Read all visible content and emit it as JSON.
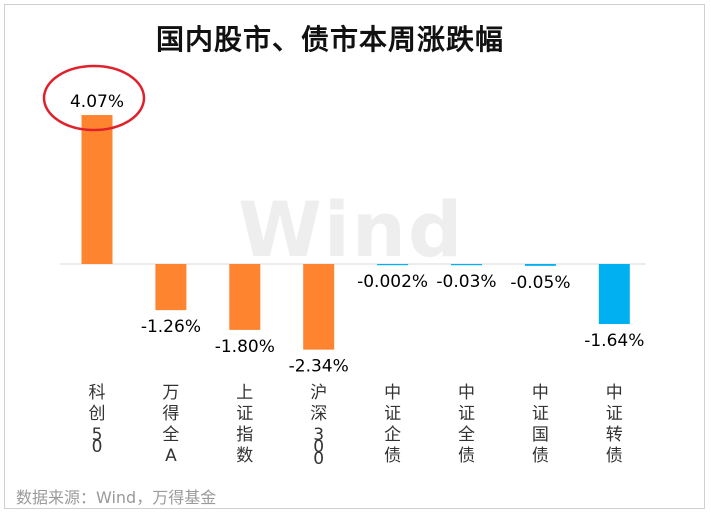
{
  "chart_data": {
    "type": "bar",
    "title": "国内股市、债市本周涨跌幅",
    "categories": [
      "科创50",
      "万得全A",
      "上证指数",
      "沪深300",
      "中证企债",
      "中证全债",
      "中证国债",
      "中证转债"
    ],
    "values": [
      4.07,
      -1.26,
      -1.8,
      -2.34,
      -0.002,
      -0.03,
      -0.05,
      -1.64
    ],
    "value_labels": [
      "4.07%",
      "-1.26%",
      "-1.80%",
      "-2.34%",
      "-0.002%",
      "-0.03%",
      "-0.05%",
      "-1.64%"
    ],
    "bar_colors": [
      "#FF8430",
      "#FF8430",
      "#FF8430",
      "#FF8430",
      "#00B0F0",
      "#00B0F0",
      "#00B0F0",
      "#00B0F0"
    ],
    "xlabel": "",
    "ylabel": "",
    "ylim": [
      -3,
      4.5
    ],
    "grid": false,
    "legend": "none",
    "highlight": {
      "category": "科创50",
      "shape": "ellipse",
      "color": "#E0212B"
    }
  },
  "watermark": "Wind",
  "source": "数据来源：Wind，万得基金"
}
